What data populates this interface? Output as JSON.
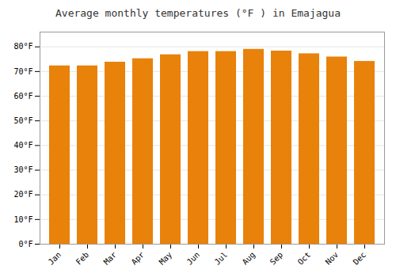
{
  "chart_data": {
    "type": "bar",
    "title": "Average monthly temperatures (°F ) in Emajagua",
    "categories": [
      "Jan",
      "Feb",
      "Mar",
      "Apr",
      "May",
      "Jun",
      "Jul",
      "Aug",
      "Sep",
      "Oct",
      "Nov",
      "Dec"
    ],
    "values": [
      72.3,
      72.3,
      73.8,
      75.2,
      76.8,
      78.1,
      78.1,
      79.0,
      78.3,
      77.2,
      75.9,
      74.1
    ],
    "color": "#E8820A",
    "ylim": [
      0,
      86
    ],
    "yticks": [
      {
        "value": 0,
        "label": "0°F"
      },
      {
        "value": 10,
        "label": "10°F"
      },
      {
        "value": 20,
        "label": "20°F"
      },
      {
        "value": 30,
        "label": "30°F"
      },
      {
        "value": 40,
        "label": "40°F"
      },
      {
        "value": 50,
        "label": "50°F"
      },
      {
        "value": 60,
        "label": "60°F"
      },
      {
        "value": 70,
        "label": "70°F"
      },
      {
        "value": 80,
        "label": "80°F"
      }
    ],
    "grid": true
  }
}
